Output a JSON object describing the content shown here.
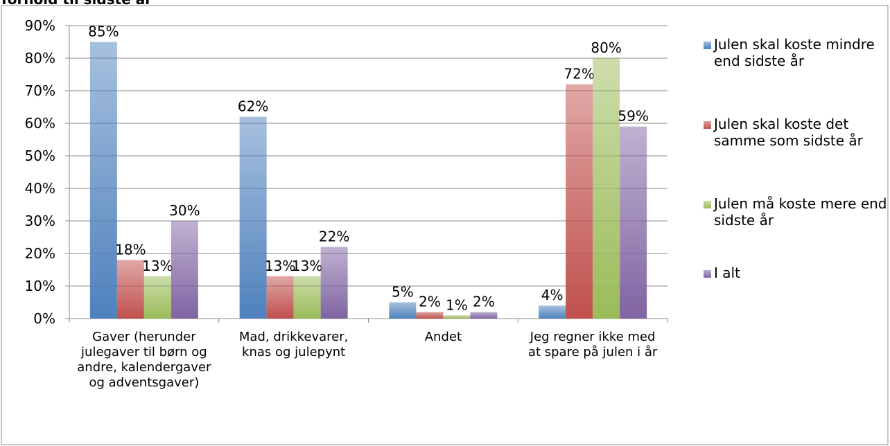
{
  "chart_data": {
    "type": "bar",
    "title": "forhold til sidste år",
    "categories": [
      "Gaver (herunder julegaver til børn og andre, kalendergaver og adventsgaver)",
      "Mad, drikkevarer, knas og julepynt",
      "Andet",
      "Jeg regner ikke med at spare på julen i år"
    ],
    "series": [
      {
        "name": "Julen skal koste mindre end sidste år",
        "color": "#4f81bd",
        "values": [
          85,
          62,
          5,
          4
        ],
        "value_labels": [
          "85%",
          "62%",
          "5%",
          "4%"
        ]
      },
      {
        "name": "Julen skal koste det samme som sidste år",
        "color": "#c0504d",
        "values": [
          18,
          13,
          2,
          72
        ],
        "value_labels": [
          "18%",
          "13%",
          "2%",
          "72%"
        ]
      },
      {
        "name": "Julen må koste mere end sidste år",
        "color": "#9bbb59",
        "values": [
          13,
          13,
          1,
          80
        ],
        "value_labels": [
          "13%",
          "13%",
          "1%",
          "80%"
        ]
      },
      {
        "name": "I alt",
        "color": "#8064a2",
        "values": [
          30,
          22,
          2,
          59
        ],
        "value_labels": [
          "30%",
          "22%",
          "2%",
          "59%"
        ]
      }
    ],
    "ylim": [
      0,
      90
    ],
    "yticks": [
      {
        "value": 0,
        "label": "0%"
      },
      {
        "value": 10,
        "label": "10%"
      },
      {
        "value": 20,
        "label": "20%"
      },
      {
        "value": 30,
        "label": "30%"
      },
      {
        "value": 40,
        "label": "40%"
      },
      {
        "value": 50,
        "label": "50%"
      },
      {
        "value": 60,
        "label": "60%"
      },
      {
        "value": 70,
        "label": "70%"
      },
      {
        "value": 80,
        "label": "80%"
      },
      {
        "value": 90,
        "label": "90%"
      }
    ],
    "grid": true,
    "legend": "right"
  }
}
